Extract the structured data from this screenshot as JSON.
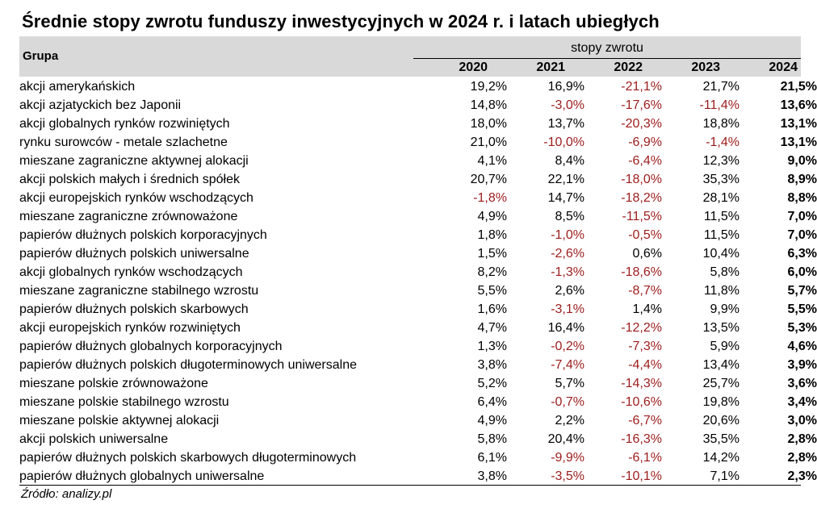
{
  "title": "Średnie stopy zwrotu funduszy inwestycyjnych w 2024 r. i latach ubiegłych",
  "source": "Źródło: analizy.pl",
  "colors": {
    "header_bg": "#d9d9d9",
    "negative": "#9c1c1c"
  },
  "chart_data": {
    "type": "table",
    "title": "Średnie stopy zwrotu funduszy inwestycyjnych w 2024 r. i latach ubiegłych",
    "row_header": "Grupa",
    "column_group": "stopy zwrotu",
    "columns": [
      "2020",
      "2021",
      "2022",
      "2023",
      "2024"
    ],
    "rows": [
      {
        "name": "akcji amerykańskich",
        "values": [
          "19,2%",
          "16,9%",
          "-21,1%",
          "21,7%",
          "21,5%"
        ]
      },
      {
        "name": "akcji azjatyckich bez Japonii",
        "values": [
          "14,8%",
          "-3,0%",
          "-17,6%",
          "-11,4%",
          "13,6%"
        ]
      },
      {
        "name": "akcji globalnych rynków rozwiniętych",
        "values": [
          "18,0%",
          "13,7%",
          "-20,3%",
          "18,8%",
          "13,1%"
        ]
      },
      {
        "name": "rynku surowców - metale szlachetne",
        "values": [
          "21,0%",
          "-10,0%",
          "-6,9%",
          "-1,4%",
          "13,1%"
        ]
      },
      {
        "name": "mieszane zagraniczne aktywnej alokacji",
        "values": [
          "4,1%",
          "8,4%",
          "-6,4%",
          "12,3%",
          "9,0%"
        ]
      },
      {
        "name": "akcji polskich małych i średnich spółek",
        "values": [
          "20,7%",
          "22,1%",
          "-18,0%",
          "35,3%",
          "8,9%"
        ]
      },
      {
        "name": "akcji europejskich rynków wschodzących",
        "values": [
          "-1,8%",
          "14,7%",
          "-18,2%",
          "28,1%",
          "8,8%"
        ]
      },
      {
        "name": "mieszane zagraniczne zrównoważone",
        "values": [
          "4,9%",
          "8,5%",
          "-11,5%",
          "11,5%",
          "7,0%"
        ]
      },
      {
        "name": "papierów dłużnych polskich korporacyjnych",
        "values": [
          "1,8%",
          "-1,0%",
          "-0,5%",
          "11,5%",
          "7,0%"
        ]
      },
      {
        "name": "papierów dłużnych polskich uniwersalne",
        "values": [
          "1,5%",
          "-2,6%",
          "0,6%",
          "10,4%",
          "6,3%"
        ]
      },
      {
        "name": "akcji globalnych rynków wschodzących",
        "values": [
          "8,2%",
          "-1,3%",
          "-18,6%",
          "5,8%",
          "6,0%"
        ]
      },
      {
        "name": "mieszane zagraniczne stabilnego wzrostu",
        "values": [
          "5,5%",
          "2,6%",
          "-8,7%",
          "11,8%",
          "5,7%"
        ]
      },
      {
        "name": "papierów dłużnych polskich skarbowych",
        "values": [
          "1,6%",
          "-3,1%",
          "1,4%",
          "9,9%",
          "5,5%"
        ]
      },
      {
        "name": "akcji europejskich rynków rozwiniętych",
        "values": [
          "4,7%",
          "16,4%",
          "-12,2%",
          "13,5%",
          "5,3%"
        ]
      },
      {
        "name": "papierów dłużnych globalnych korporacyjnych",
        "values": [
          "1,3%",
          "-0,2%",
          "-7,3%",
          "5,9%",
          "4,6%"
        ]
      },
      {
        "name": "papierów dłużnych polskich długoterminowych uniwersalne",
        "values": [
          "3,8%",
          "-7,4%",
          "-4,4%",
          "13,4%",
          "3,9%"
        ]
      },
      {
        "name": "mieszane polskie zrównoważone",
        "values": [
          "5,2%",
          "5,7%",
          "-14,3%",
          "25,7%",
          "3,6%"
        ]
      },
      {
        "name": "mieszane polskie stabilnego wzrostu",
        "values": [
          "6,4%",
          "-0,7%",
          "-10,6%",
          "19,8%",
          "3,4%"
        ]
      },
      {
        "name": "mieszane polskie aktywnej alokacji",
        "values": [
          "4,9%",
          "2,2%",
          "-6,7%",
          "20,6%",
          "3,0%"
        ]
      },
      {
        "name": "akcji polskich uniwersalne",
        "values": [
          "5,8%",
          "20,4%",
          "-16,3%",
          "35,5%",
          "2,8%"
        ]
      },
      {
        "name": "papierów dłużnych polskich skarbowych długoterminowych",
        "values": [
          "6,1%",
          "-9,9%",
          "-6,1%",
          "14,2%",
          "2,8%"
        ]
      },
      {
        "name": "papierów dłużnych globalnych uniwersalne",
        "values": [
          "3,8%",
          "-3,5%",
          "-10,1%",
          "7,1%",
          "2,3%"
        ]
      }
    ]
  }
}
